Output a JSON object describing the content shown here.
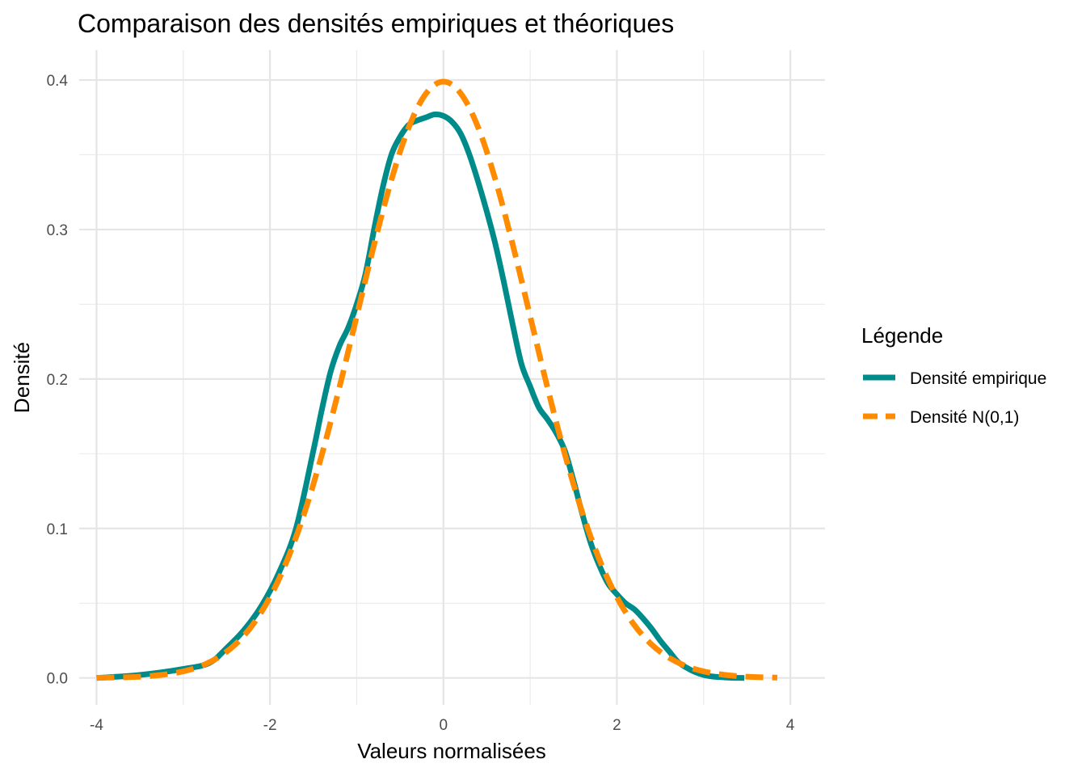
{
  "chart_data": {
    "type": "line",
    "title": "Comparaison des densités empiriques et théoriques",
    "xlabel": "Valeurs normalisées",
    "ylabel": "Densité",
    "xlim": [
      -4.2,
      4.4
    ],
    "ylim": [
      -0.018,
      0.42
    ],
    "x_ticks": [
      -4,
      -2,
      0,
      2,
      4
    ],
    "x_tick_labels": [
      "-4",
      "-2",
      "0",
      "2",
      "4"
    ],
    "y_ticks": [
      0.0,
      0.1,
      0.2,
      0.3,
      0.4
    ],
    "y_tick_labels": [
      "0.0",
      "0.1",
      "0.2",
      "0.3",
      "0.4"
    ],
    "grid": true,
    "legend": {
      "title": "Légende",
      "position": "right"
    },
    "series": [
      {
        "name": "Densité empirique",
        "color": "#008B8B",
        "style": "solid",
        "x": [
          -4.0,
          -3.5,
          -3.0,
          -2.7,
          -2.5,
          -2.3,
          -2.1,
          -1.9,
          -1.7,
          -1.5,
          -1.4,
          -1.3,
          -1.2,
          -1.1,
          -1.0,
          -0.9,
          -0.8,
          -0.7,
          -0.6,
          -0.5,
          -0.4,
          -0.3,
          -0.2,
          -0.1,
          0.0,
          0.1,
          0.2,
          0.3,
          0.4,
          0.5,
          0.6,
          0.7,
          0.8,
          0.9,
          1.0,
          1.1,
          1.2,
          1.3,
          1.4,
          1.5,
          1.6,
          1.7,
          1.8,
          1.9,
          2.0,
          2.1,
          2.2,
          2.3,
          2.4,
          2.5,
          2.6,
          2.7,
          2.8,
          2.9,
          3.0,
          3.1,
          3.2,
          3.3,
          3.47
        ],
        "values": [
          0.0,
          0.002,
          0.006,
          0.01,
          0.02,
          0.032,
          0.048,
          0.07,
          0.1,
          0.152,
          0.18,
          0.205,
          0.222,
          0.234,
          0.25,
          0.27,
          0.3,
          0.328,
          0.35,
          0.362,
          0.37,
          0.373,
          0.375,
          0.377,
          0.376,
          0.372,
          0.364,
          0.35,
          0.332,
          0.312,
          0.29,
          0.264,
          0.236,
          0.21,
          0.195,
          0.181,
          0.173,
          0.164,
          0.152,
          0.132,
          0.11,
          0.09,
          0.075,
          0.063,
          0.056,
          0.05,
          0.046,
          0.04,
          0.033,
          0.025,
          0.018,
          0.011,
          0.007,
          0.004,
          0.002,
          0.001,
          0.0005,
          0.0002,
          0.0
        ]
      },
      {
        "name": "Densité N(0,1)",
        "color": "#FF8C00",
        "style": "dashed",
        "x": [
          -4.0,
          -3.8,
          -3.6,
          -3.4,
          -3.2,
          -3.0,
          -2.8,
          -2.6,
          -2.4,
          -2.2,
          -2.0,
          -1.8,
          -1.6,
          -1.4,
          -1.2,
          -1.0,
          -0.8,
          -0.6,
          -0.4,
          -0.2,
          0.0,
          0.2,
          0.4,
          0.6,
          0.8,
          1.0,
          1.2,
          1.4,
          1.6,
          1.8,
          2.0,
          2.2,
          2.4,
          2.6,
          2.8,
          3.0,
          3.2,
          3.4,
          3.6,
          3.8,
          3.85
        ],
        "values": [
          0.0001,
          0.0003,
          0.0006,
          0.0012,
          0.0024,
          0.0044,
          0.0079,
          0.0136,
          0.0224,
          0.0355,
          0.054,
          0.079,
          0.1109,
          0.1497,
          0.1942,
          0.242,
          0.2897,
          0.3332,
          0.3683,
          0.391,
          0.3989,
          0.391,
          0.3683,
          0.3332,
          0.2897,
          0.242,
          0.1942,
          0.1497,
          0.1109,
          0.079,
          0.054,
          0.0355,
          0.0224,
          0.0136,
          0.0079,
          0.0044,
          0.0024,
          0.0012,
          0.0006,
          0.0003,
          0.0002
        ]
      }
    ]
  }
}
